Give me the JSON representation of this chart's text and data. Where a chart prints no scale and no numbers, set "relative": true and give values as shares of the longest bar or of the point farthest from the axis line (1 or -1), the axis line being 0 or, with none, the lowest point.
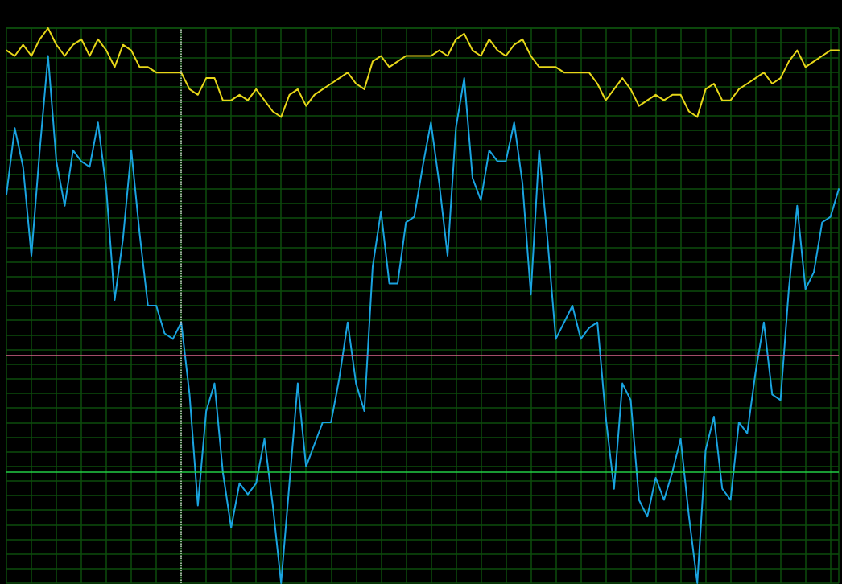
{
  "chart_data": {
    "type": "line",
    "relative": true,
    "grid": true,
    "marker": "none",
    "line_style": "solid",
    "categories": [
      null,
      null,
      null,
      null,
      null,
      null,
      null,
      null,
      null,
      null,
      null,
      null,
      null,
      null,
      null,
      null,
      null,
      null,
      null,
      null,
      null,
      null,
      null,
      null,
      null,
      null,
      null,
      null,
      null,
      null,
      null,
      null,
      null,
      null,
      null,
      null,
      null,
      null,
      null,
      null,
      null,
      null,
      null,
      null,
      null,
      null,
      null,
      null,
      null,
      null,
      null,
      null,
      null,
      null,
      null,
      null,
      null,
      null,
      null,
      null,
      null,
      null,
      null,
      null,
      null,
      null,
      null,
      null,
      null,
      null,
      null,
      null,
      null,
      null,
      null,
      null,
      null,
      null,
      null,
      null,
      null,
      null,
      null,
      null,
      null,
      null,
      null,
      null,
      null,
      null,
      null,
      null,
      null,
      null,
      null,
      null,
      null,
      null,
      null,
      null,
      null
    ],
    "series": [
      {
        "color": "#e6d619",
        "values": [
          0.96,
          0.95,
          0.97,
          0.95,
          0.98,
          1,
          0.97,
          0.95,
          0.97,
          0.98,
          0.95,
          0.98,
          0.96,
          0.93,
          0.97,
          0.96,
          0.93,
          0.93,
          0.92,
          0.92,
          0.92,
          0.92,
          0.89,
          0.88,
          0.91,
          0.91,
          0.87,
          0.87,
          0.88,
          0.87,
          0.89,
          0.87,
          0.85,
          0.84,
          0.88,
          0.89,
          0.86,
          0.88,
          0.89,
          0.9,
          0.91,
          0.92,
          0.9,
          0.89,
          0.94,
          0.95,
          0.93,
          0.94,
          0.95,
          0.95,
          0.95,
          0.95,
          0.96,
          0.95,
          0.98,
          0.99,
          0.96,
          0.95,
          0.98,
          0.96,
          0.95,
          0.97,
          0.98,
          0.95,
          0.93,
          0.93,
          0.93,
          0.92,
          0.92,
          0.92,
          0.92,
          0.9,
          0.87,
          0.89,
          0.91,
          0.89,
          0.86,
          0.87,
          0.88,
          0.87,
          0.88,
          0.88,
          0.85,
          0.84,
          0.89,
          0.9,
          0.87,
          0.87,
          0.89,
          0.9,
          0.91,
          0.92,
          0.9,
          0.91,
          0.94,
          0.96,
          0.93,
          0.94,
          0.95,
          0.96,
          0.96
        ]
      },
      {
        "color": "#1aa3e0",
        "values": [
          0.7,
          0.82,
          0.75,
          0.59,
          0.78,
          0.95,
          0.76,
          0.68,
          0.78,
          0.76,
          0.75,
          0.83,
          0.71,
          0.51,
          0.62,
          0.78,
          0.63,
          0.5,
          0.5,
          0.45,
          0.44,
          0.47,
          0.34,
          0.14,
          0.31,
          0.36,
          0.2,
          0.1,
          0.18,
          0.16,
          0.18,
          0.26,
          0.14,
          0,
          0.18,
          0.36,
          0.21,
          0.25,
          0.29,
          0.29,
          0.37,
          0.47,
          0.36,
          0.31,
          0.57,
          0.67,
          0.54,
          0.54,
          0.65,
          0.66,
          0.75,
          0.83,
          0.72,
          0.59,
          0.82,
          0.91,
          0.73,
          0.69,
          0.78,
          0.76,
          0.76,
          0.83,
          0.72,
          0.52,
          0.78,
          0.62,
          0.44,
          0.47,
          0.5,
          0.44,
          0.46,
          0.47,
          0.3,
          0.17,
          0.36,
          0.33,
          0.15,
          0.12,
          0.19,
          0.15,
          0.2,
          0.26,
          0.12,
          0,
          0.24,
          0.3,
          0.17,
          0.15,
          0.29,
          0.27,
          0.38,
          0.47,
          0.34,
          0.33,
          0.53,
          0.68,
          0.53,
          0.56,
          0.65,
          0.66,
          0.71
        ]
      }
    ],
    "ref_lines": [
      {
        "axis": "y",
        "value": 0.41,
        "color": "#d9668c",
        "line_style": "solid"
      },
      {
        "axis": "y",
        "value": 0.2,
        "color": "#22cc44",
        "line_style": "solid"
      }
    ]
  }
}
